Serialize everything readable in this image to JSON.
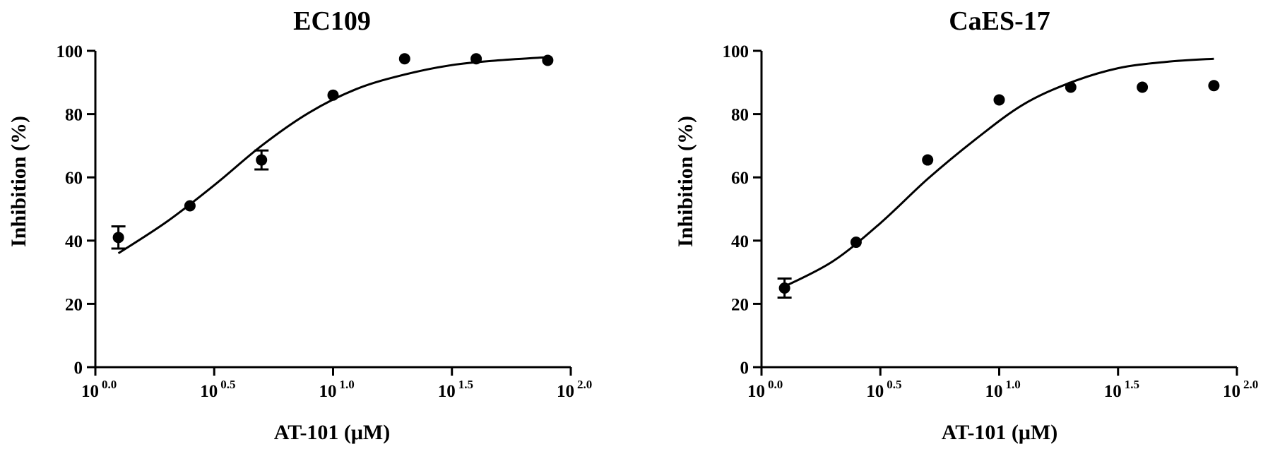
{
  "chart_data": [
    {
      "type": "scatter",
      "title": "EC109",
      "xlabel": "AT-101 (μM)",
      "ylabel": "Inhibition (%)",
      "x_scale": "log10",
      "xlim": [
        1,
        100
      ],
      "ylim": [
        0,
        100
      ],
      "grid": false,
      "x_tick_labels": [
        {
          "base": "10",
          "exp": "0.0",
          "value": 1
        },
        {
          "base": "10",
          "exp": "0.5",
          "value": 3.162
        },
        {
          "base": "10",
          "exp": "1.0",
          "value": 10
        },
        {
          "base": "10",
          "exp": "1.5",
          "value": 31.62
        },
        {
          "base": "10",
          "exp": "2.0",
          "value": 100
        }
      ],
      "y_ticks": [
        0,
        20,
        40,
        60,
        80,
        100
      ],
      "y_tick_labels": [
        "0",
        "20",
        "40",
        "60",
        "80",
        "100"
      ],
      "points": [
        {
          "x": 1.25,
          "y": 41.0,
          "err": 3.5
        },
        {
          "x": 2.5,
          "y": 51.0,
          "err": 0
        },
        {
          "x": 5,
          "y": 65.5,
          "err": 3.0
        },
        {
          "x": 10,
          "y": 86.0,
          "err": 0
        },
        {
          "x": 20,
          "y": 97.5,
          "err": 0
        },
        {
          "x": 40,
          "y": 97.5,
          "err": 0
        },
        {
          "x": 80,
          "y": 97.0,
          "err": 0
        }
      ],
      "fit_curve": [
        {
          "x": 1.25,
          "y": 36.0
        },
        {
          "x": 2.0,
          "y": 46.0
        },
        {
          "x": 3.16,
          "y": 57.5
        },
        {
          "x": 5,
          "y": 70.0
        },
        {
          "x": 7.94,
          "y": 80.5
        },
        {
          "x": 12.6,
          "y": 88.0
        },
        {
          "x": 20,
          "y": 92.5
        },
        {
          "x": 31.6,
          "y": 95.5
        },
        {
          "x": 50,
          "y": 97.0
        },
        {
          "x": 80,
          "y": 98.0
        }
      ]
    },
    {
      "type": "scatter",
      "title": "CaES-17",
      "xlabel": "AT-101 (μM)",
      "ylabel": "Inhibition (%)",
      "x_scale": "log10",
      "xlim": [
        1,
        100
      ],
      "ylim": [
        0,
        100
      ],
      "grid": false,
      "x_tick_labels": [
        {
          "base": "10",
          "exp": "0.0",
          "value": 1
        },
        {
          "base": "10",
          "exp": "0.5",
          "value": 3.162
        },
        {
          "base": "10",
          "exp": "1.0",
          "value": 10
        },
        {
          "base": "10",
          "exp": "1.5",
          "value": 31.62
        },
        {
          "base": "10",
          "exp": "2.0",
          "value": 100
        }
      ],
      "y_ticks": [
        0,
        20,
        40,
        60,
        80,
        100
      ],
      "y_tick_labels": [
        "0",
        "20",
        "40",
        "60",
        "80",
        "100"
      ],
      "points": [
        {
          "x": 1.25,
          "y": 25.0,
          "err": 3.0
        },
        {
          "x": 2.5,
          "y": 39.5,
          "err": 0
        },
        {
          "x": 5,
          "y": 65.5,
          "err": 0
        },
        {
          "x": 10,
          "y": 84.5,
          "err": 0
        },
        {
          "x": 20,
          "y": 88.5,
          "err": 0
        },
        {
          "x": 40,
          "y": 88.5,
          "err": 0
        },
        {
          "x": 80,
          "y": 89.0,
          "err": 0
        }
      ],
      "fit_curve": [
        {
          "x": 1.25,
          "y": 25.5
        },
        {
          "x": 2.0,
          "y": 33.5
        },
        {
          "x": 3.16,
          "y": 45.5
        },
        {
          "x": 5,
          "y": 59.5
        },
        {
          "x": 7.94,
          "y": 72.0
        },
        {
          "x": 12.6,
          "y": 83.0
        },
        {
          "x": 20,
          "y": 90.0
        },
        {
          "x": 31.6,
          "y": 94.5
        },
        {
          "x": 50,
          "y": 96.5
        },
        {
          "x": 80,
          "y": 97.5
        }
      ]
    }
  ]
}
